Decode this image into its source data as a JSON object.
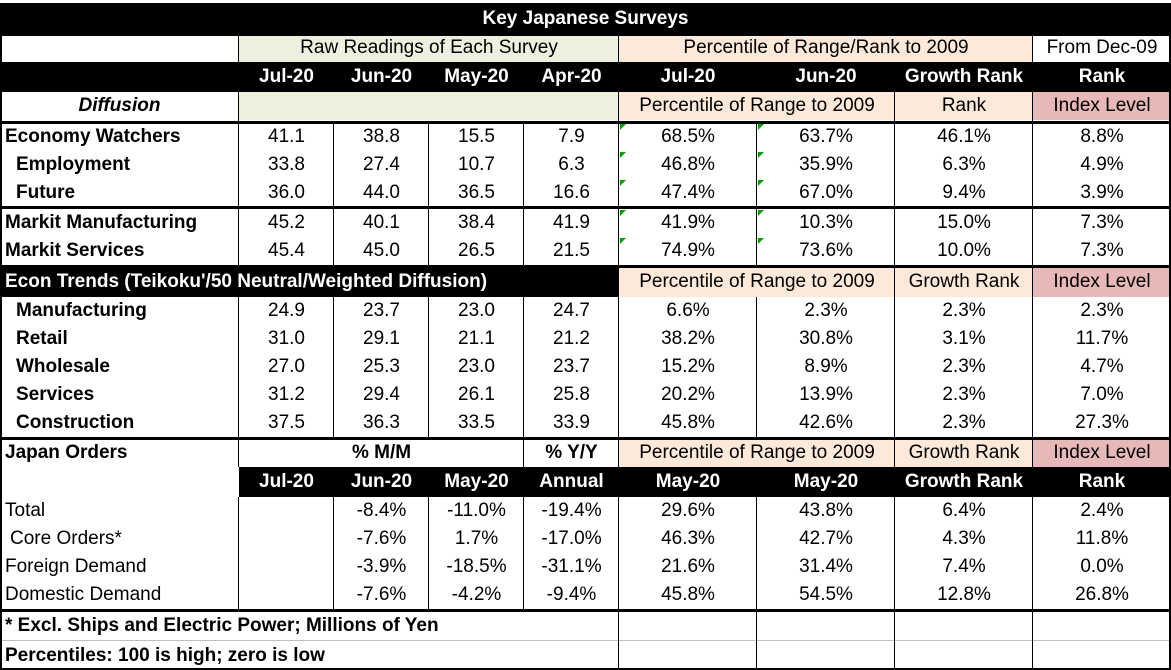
{
  "title": "Key Japanese Surveys",
  "groups": {
    "raw": "Raw Readings of Each Survey",
    "pct": "Percentile of Range/Rank  to 2009",
    "from": "From Dec-09"
  },
  "col_headers": [
    "Jul-20",
    "Jun-20",
    "May-20",
    "Apr-20",
    "Jul-20",
    "Jun-20",
    "Growth Rank",
    "Rank"
  ],
  "diffusion": {
    "label": "Diffusion",
    "pct": "Percentile of Range to 2009",
    "rank": "Rank",
    "index": "Index Level"
  },
  "section1": [
    {
      "label": "Economy Watchers",
      "vals": [
        "41.1",
        "38.8",
        "15.5",
        "7.9",
        "68.5%",
        "63.7%",
        "46.1%",
        "8.8%"
      ]
    },
    {
      "label": "Employment",
      "vals": [
        "33.8",
        "27.4",
        "10.7",
        "6.3",
        "46.8%",
        "35.9%",
        "6.3%",
        "4.9%"
      ]
    },
    {
      "label": "Future",
      "vals": [
        "36.0",
        "44.0",
        "36.5",
        "16.6",
        "47.4%",
        "67.0%",
        "9.4%",
        "3.9%"
      ]
    },
    {
      "label": "Markit Manufacturing",
      "vals": [
        "45.2",
        "40.1",
        "38.4",
        "41.9",
        "41.9%",
        "10.3%",
        "15.0%",
        "7.3%"
      ]
    },
    {
      "label": "Markit Services",
      "vals": [
        "45.4",
        "45.0",
        "26.5",
        "21.5",
        "74.9%",
        "73.6%",
        "10.0%",
        "7.3%"
      ]
    }
  ],
  "econ": {
    "label": "Econ Trends (Teikoku'/50 Neutral/Weighted Diffusion)",
    "pct": "Percentile of Range to 2009",
    "growth": "Growth Rank",
    "index": "Index Level"
  },
  "section2": [
    {
      "label": "Manufacturing",
      "vals": [
        "24.9",
        "23.7",
        "23.0",
        "24.7",
        "6.6%",
        "2.3%",
        "2.3%",
        "2.3%"
      ]
    },
    {
      "label": "Retail",
      "vals": [
        "31.0",
        "29.1",
        "21.1",
        "21.2",
        "38.2%",
        "30.8%",
        "3.1%",
        "11.7%"
      ]
    },
    {
      "label": "Wholesale",
      "vals": [
        "27.0",
        "25.3",
        "23.0",
        "23.7",
        "15.2%",
        "8.9%",
        "2.3%",
        "4.7%"
      ]
    },
    {
      "label": "Services",
      "vals": [
        "31.2",
        "29.4",
        "26.1",
        "25.8",
        "20.2%",
        "13.9%",
        "2.3%",
        "7.0%"
      ]
    },
    {
      "label": "Construction",
      "vals": [
        "37.5",
        "36.3",
        "33.5",
        "33.9",
        "45.8%",
        "42.6%",
        "2.3%",
        "27.3%"
      ]
    }
  ],
  "orders": {
    "label": "Japan Orders",
    "mm": "% M/M",
    "yy": "% Y/Y",
    "pct": "Percentile of Range to 2009",
    "growth": "Growth Rank",
    "index": "Index Level",
    "headers": [
      "Jul-20",
      "Jun-20",
      "May-20",
      "Annual",
      "May-20",
      "May-20",
      "Growth Rank",
      "Rank"
    ]
  },
  "section3": [
    {
      "label": "Total",
      "vals": [
        "",
        "-8.4%",
        "-11.0%",
        "-19.4%",
        "29.6%",
        "43.8%",
        "6.4%",
        "2.4%"
      ]
    },
    {
      "label": "Core Orders*",
      "vals": [
        "",
        "-7.6%",
        "1.7%",
        "-17.0%",
        "46.3%",
        "42.7%",
        "4.3%",
        "11.8%"
      ]
    },
    {
      "label": "Foreign Demand",
      "vals": [
        "",
        "-3.9%",
        "-18.5%",
        "-31.1%",
        "21.6%",
        "31.4%",
        "7.4%",
        "0.0%"
      ]
    },
    {
      "label": "Domestic Demand",
      "vals": [
        "",
        "-7.6%",
        "-4.2%",
        "-9.4%",
        "45.8%",
        "54.5%",
        "12.8%",
        "26.8%"
      ]
    }
  ],
  "footnotes": [
    "* Excl. Ships and Electric Power; Millions of Yen",
    "Percentiles: 100 is high; zero is low"
  ]
}
